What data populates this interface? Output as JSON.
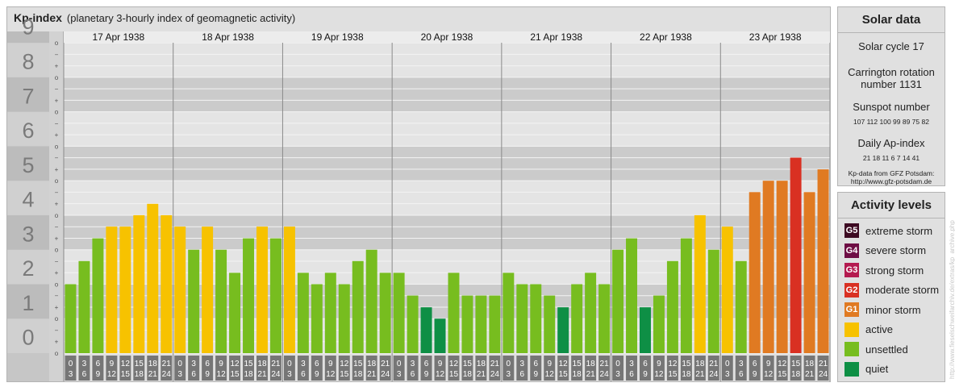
{
  "title": "Kp-index",
  "subtitle": "(planetary 3-hourly index of geomagnetic activity)",
  "solar": {
    "title": "Solar data",
    "cycle": "Solar cycle 17",
    "carrington_1": "Carrington rotation",
    "carrington_2": "number 1131",
    "sunspot_label": "Sunspot number",
    "sunspot_values": "107 112 100 99 89 75 82",
    "ap_label": "Daily Ap-index",
    "ap_values": "21 18 11 6 7 14 41",
    "source_1": "Kp-data from GFZ Potsdam:",
    "source_2": "http://www.gfz-potsdam.de"
  },
  "activity": {
    "title": "Activity levels",
    "levels": [
      {
        "code": "G5",
        "label": "extreme storm",
        "color": "#3d0a22"
      },
      {
        "code": "G4",
        "label": "severe storm",
        "color": "#6e0d44"
      },
      {
        "code": "G3",
        "label": "strong storm",
        "color": "#b41a4f"
      },
      {
        "code": "G2",
        "label": "moderate storm",
        "color": "#d93022"
      },
      {
        "code": "G1",
        "label": "minor storm",
        "color": "#e07a22"
      },
      {
        "code": "",
        "label": "active",
        "color": "#f7c200"
      },
      {
        "code": "",
        "label": "unsettled",
        "color": "#77bd1f"
      },
      {
        "code": "",
        "label": "quiet",
        "color": "#0e8f45"
      }
    ]
  },
  "watermark": "http://www.fieselschweifarchiv.de/extras/kp_archive.php",
  "chart_data": {
    "type": "bar",
    "days": [
      "17 Apr 1938",
      "18 Apr 1938",
      "19 Apr 1938",
      "20 Apr 1938",
      "21 Apr 1938",
      "22 Apr 1938",
      "23 Apr 1938"
    ],
    "interval_top": [
      "0",
      "3",
      "6",
      "9",
      "12",
      "15",
      "18",
      "21"
    ],
    "interval_bottom": [
      "3",
      "6",
      "9",
      "12",
      "15",
      "18",
      "21",
      "24"
    ],
    "y_ticks": [
      "0",
      "1",
      "2",
      "3",
      "4",
      "5",
      "6",
      "7",
      "8",
      "9"
    ],
    "thirds": [
      "o",
      "+",
      "−",
      "o"
    ],
    "ylim": [
      0,
      9.33
    ],
    "values": [
      2.0,
      2.67,
      3.33,
      3.67,
      3.67,
      4.0,
      4.33,
      4.0,
      3.67,
      3.0,
      3.67,
      3.0,
      2.33,
      3.33,
      3.67,
      3.33,
      3.67,
      2.33,
      2.0,
      2.33,
      2.0,
      2.67,
      3.0,
      2.33,
      2.33,
      1.67,
      1.33,
      1.0,
      2.33,
      1.67,
      1.67,
      1.67,
      2.33,
      2.0,
      2.0,
      1.67,
      1.33,
      2.0,
      2.33,
      2.0,
      3.0,
      3.33,
      1.33,
      1.67,
      2.67,
      3.33,
      4.0,
      3.0,
      3.67,
      2.67,
      4.67,
      5.0,
      5.0,
      5.67,
      4.67,
      5.33
    ],
    "colors": {
      "quiet": "#0e8f45",
      "unsettled": "#77bd1f",
      "active": "#f7c200",
      "g1": "#e07a22",
      "g2": "#d93022",
      "band_dark": "#cbcbcb",
      "band_light": "#e4e4e4",
      "axis_bg": "#c6c6c6",
      "slot_bg": "#767676"
    }
  }
}
